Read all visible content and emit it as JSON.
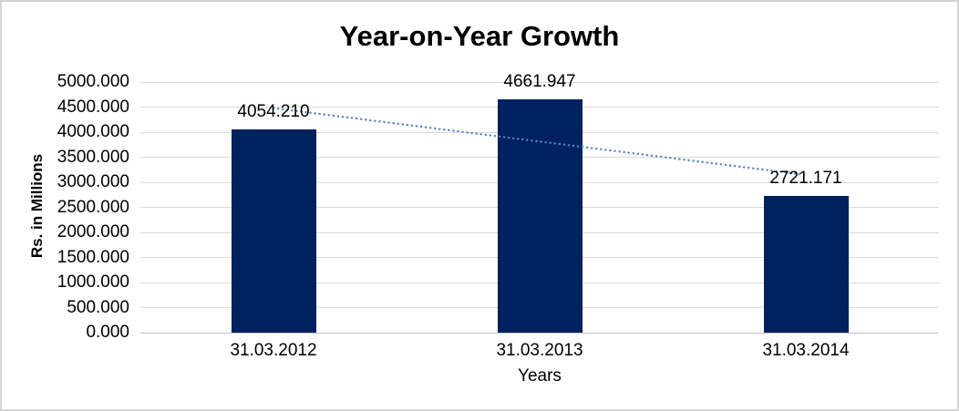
{
  "chart_data": {
    "type": "bar",
    "title": "Year-on-Year Growth",
    "xlabel": "Years",
    "ylabel": "Rs. in Millions",
    "categories": [
      "31.03.2012",
      "31.03.2013",
      "31.03.2014"
    ],
    "values": [
      4054.21,
      4661.947,
      2721.171
    ],
    "value_labels": [
      "4054.210",
      "4661.947",
      "2721.171"
    ],
    "ylim": [
      0,
      5000
    ],
    "y_tick_labels": [
      "0.000",
      "500.000",
      "1000.000",
      "1500.000",
      "2000.000",
      "2500.000",
      "3000.000",
      "3500.000",
      "4000.000",
      "4500.000",
      "5000.000"
    ],
    "grid": true,
    "legend": "none",
    "bar_color": "#00215F",
    "gridline_color": "#D9D9D9",
    "axis_line_color": "#BFBFBF",
    "trendline": {
      "type": "linear",
      "style": "dotted",
      "color": "#4E86C6"
    }
  }
}
